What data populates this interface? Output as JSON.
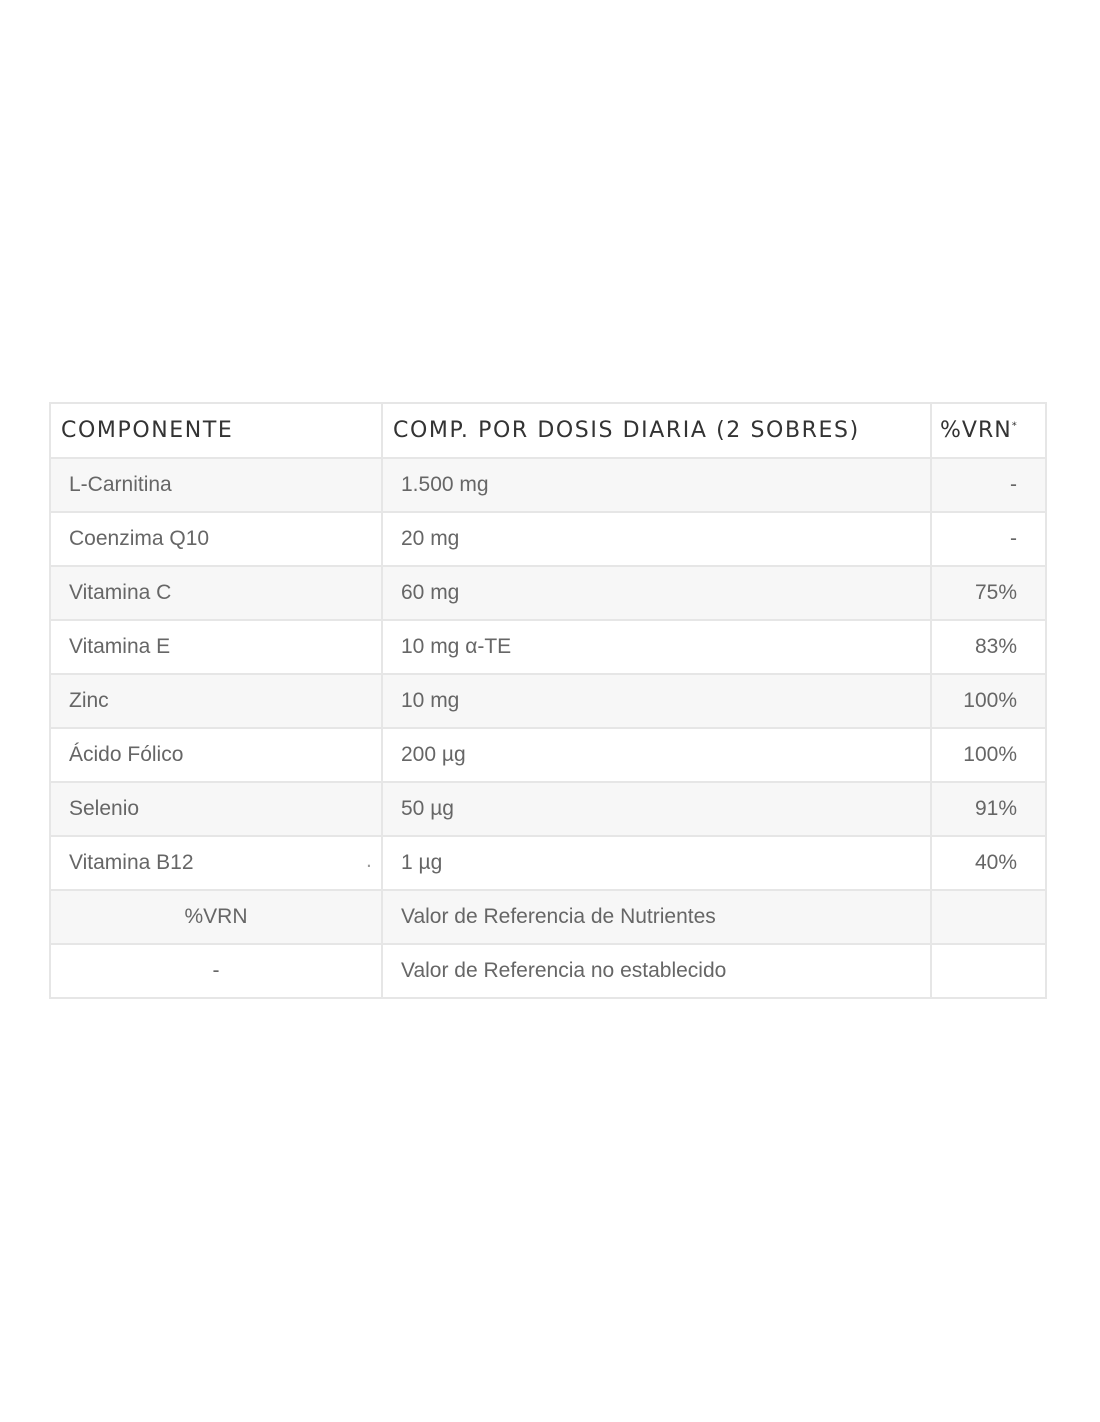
{
  "table": {
    "headers": [
      "COMPONENTE",
      "COMP. POR DOSIS DIARIA (2 SOBRES)",
      "%VRN",
      "*"
    ],
    "rows": [
      {
        "component": "L-Carnitina",
        "amount": "1.500 mg",
        "vrn": "-"
      },
      {
        "component": "Coenzima Q10",
        "amount": "20 mg",
        "vrn": "-"
      },
      {
        "component": "Vitamina C",
        "amount": "60 mg",
        "vrn": "75%"
      },
      {
        "component": "Vitamina E",
        "amount": "10 mg α-TE",
        "vrn": "83%"
      },
      {
        "component": "Zinc",
        "amount": "10 mg",
        "vrn": "100%"
      },
      {
        "component": "Ácido Fólico",
        "amount": "200 µg",
        "vrn": "100%"
      },
      {
        "component": "Selenio",
        "amount": "50 µg",
        "vrn": "91%"
      },
      {
        "component": "Vitamina B12",
        "amount": "1 µg",
        "vrn": "40%",
        "mark": "."
      }
    ],
    "legend": [
      {
        "term": "%VRN",
        "definition": "Valor de Referencia de Nutrientes"
      },
      {
        "term": "-",
        "definition": "Valor de Referencia no establecido"
      }
    ]
  }
}
